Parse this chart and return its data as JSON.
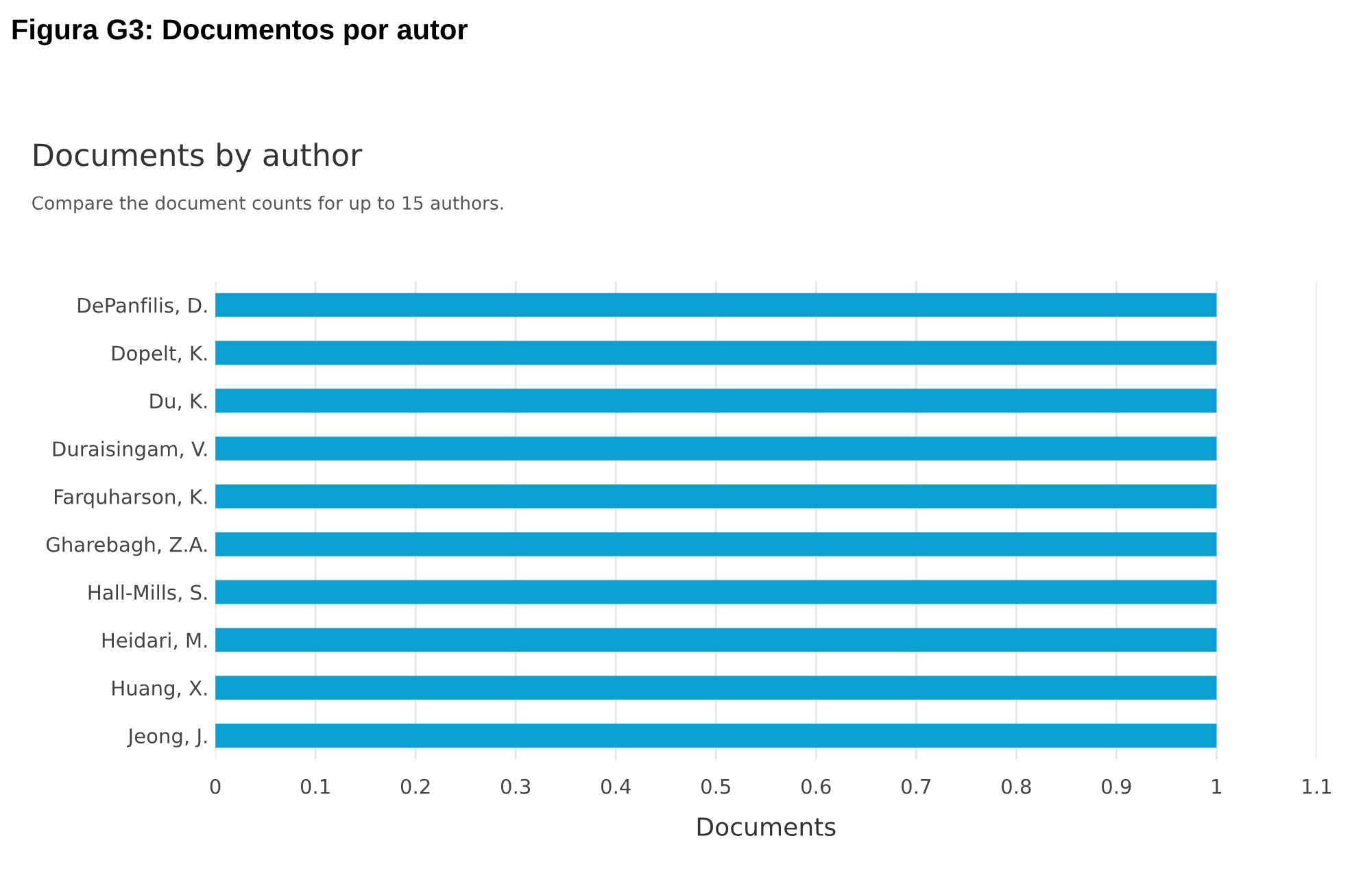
{
  "chart_data": {
    "type": "bar",
    "orientation": "horizontal",
    "title": "Documents by author",
    "subtitle": "Compare the document counts for up to 15 authors.",
    "annotations": [
      "Figura G3: Documentos por autor"
    ],
    "xlabel": "Documents",
    "categories": [
      "DePanfilis, D.",
      "Dopelt, K.",
      "Du, K.",
      "Duraisingam, V.",
      "Farquharson, K.",
      "Gharebagh, Z.A.",
      "Hall-Mills, S.",
      "Heidari, M.",
      "Huang, X.",
      "Jeong, J."
    ],
    "values": [
      1,
      1,
      1,
      1,
      1,
      1,
      1,
      1,
      1,
      1
    ],
    "color": "#0b9fd2",
    "xlim": [
      0,
      1.1
    ],
    "xticks": [
      0,
      0.1,
      0.2,
      0.3,
      0.4,
      0.5,
      0.6,
      0.7,
      0.8,
      0.9,
      1,
      1.1
    ],
    "grid": "x",
    "legend": false
  }
}
